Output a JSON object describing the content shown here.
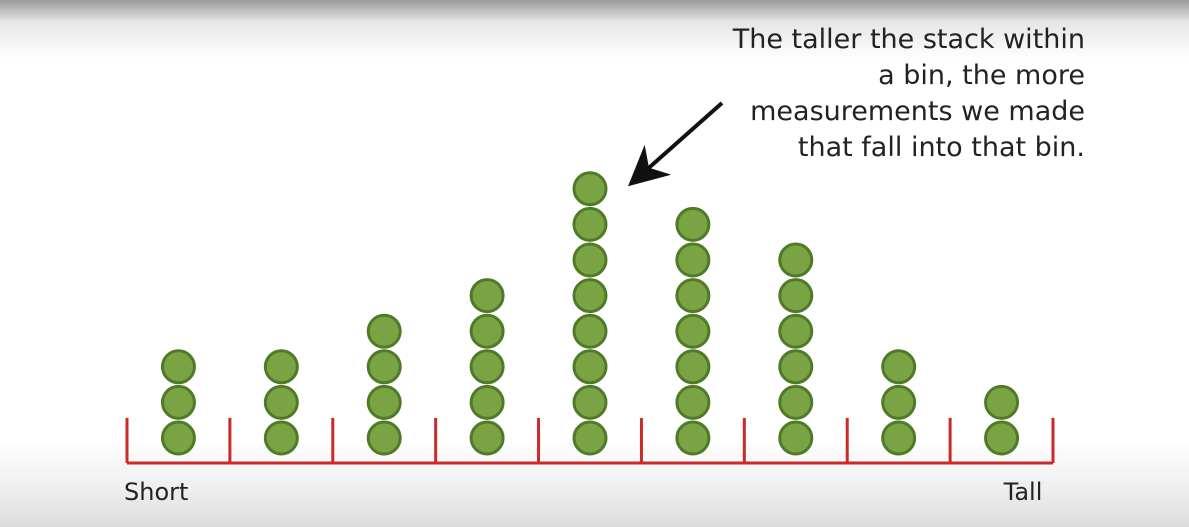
{
  "chart_data": {
    "type": "dotplot",
    "values": [
      3,
      3,
      4,
      5,
      8,
      7,
      6,
      3,
      2
    ],
    "color": "#7aa444",
    "edge_color": "#4f7a27",
    "axis_color": "#cc2a2a",
    "axis_labels": [
      "Short",
      "Tall"
    ],
    "annotation": "The taller the stack within a bin, the more measurements we made that fall into that bin."
  }
}
